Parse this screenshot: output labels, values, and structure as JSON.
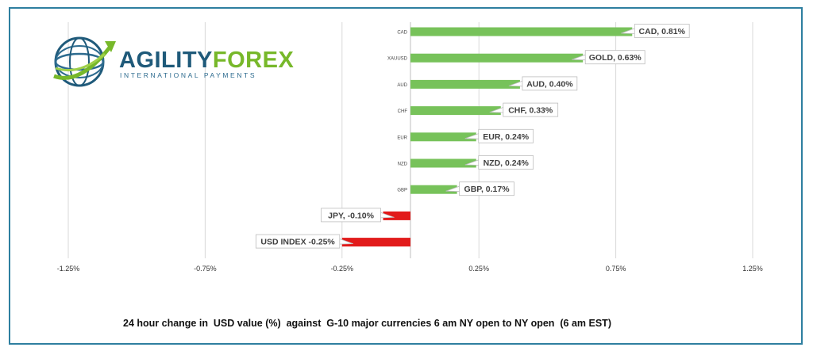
{
  "logo": {
    "brand_part1": "AGILITY",
    "brand_part2": "FOREX",
    "tagline": "INTERNATIONAL PAYMENTS",
    "colors": {
      "blue": "#1f5a7a",
      "green": "#77b82a"
    }
  },
  "caption": "24 hour change in  USD value (%)  against  G-10 major currencies 6 am NY open to NY open  (6 am EST)",
  "colors": {
    "positive": "#77c25a",
    "negative": "#e21b1b",
    "grid": "#d9d9d9",
    "frame": "#2e7fa0"
  },
  "chart_data": {
    "type": "bar",
    "orientation": "horizontal",
    "categories": [
      "CAD",
      "XAUUSD",
      "AUD",
      "CHF",
      "EUR",
      "NZD",
      "GBP",
      "",
      ""
    ],
    "values": [
      0.81,
      0.63,
      0.4,
      0.33,
      0.24,
      0.24,
      0.17,
      -0.1,
      -0.25
    ],
    "data_labels": [
      "CAD, 0.81%",
      "GOLD, 0.63%",
      "AUD, 0.40%",
      "CHF, 0.33%",
      "EUR, 0.24%",
      "NZD, 0.24%",
      "GBP, 0.17%",
      "JPY, -0.10%",
      "USD INDEX -0.25%"
    ],
    "xlim": [
      -1.25,
      1.25
    ],
    "xticks": [
      -1.25,
      -0.75,
      -0.25,
      0.25,
      0.75,
      1.25
    ],
    "xtick_labels": [
      "-1.25%",
      "-0.75%",
      "-0.25%",
      "0.25%",
      "0.75%",
      "1.25%"
    ],
    "grid": true,
    "title": "",
    "xlabel": "",
    "ylabel": ""
  }
}
